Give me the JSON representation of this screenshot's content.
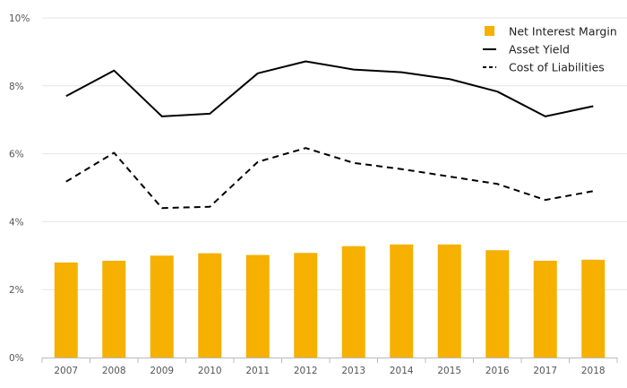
{
  "chart_data": {
    "type": "bar",
    "title": "",
    "xlabel": "",
    "ylabel": "",
    "categories": [
      "2007",
      "2008",
      "2009",
      "2010",
      "2011",
      "2012",
      "2013",
      "2014",
      "2015",
      "2016",
      "2017",
      "2018"
    ],
    "ylim": [
      0,
      10
    ],
    "y_ticks": [
      0,
      2,
      4,
      6,
      8,
      10
    ],
    "y_tick_labels": [
      "0%",
      "2%",
      "4%",
      "6%",
      "8%",
      "10%"
    ],
    "grid": "horizontal",
    "legend_position": "top-right",
    "series": [
      {
        "name": "Net Interest Margin",
        "kind": "bar",
        "color": "#F5B000",
        "values": [
          2.8,
          2.85,
          3.0,
          3.07,
          3.02,
          3.08,
          3.28,
          3.33,
          3.33,
          3.16,
          2.85,
          2.88
        ]
      },
      {
        "name": "Asset Yield",
        "kind": "line",
        "dash": "solid",
        "color": "#000000",
        "values": [
          7.7,
          8.45,
          7.1,
          7.18,
          8.37,
          8.72,
          8.48,
          8.4,
          8.2,
          7.83,
          7.1,
          7.4
        ]
      },
      {
        "name": "Cost of Liabilities",
        "kind": "line",
        "dash": "dashed",
        "color": "#000000",
        "values": [
          5.18,
          6.03,
          4.4,
          4.44,
          5.76,
          6.17,
          5.73,
          5.55,
          5.33,
          5.11,
          4.64,
          4.9
        ]
      }
    ]
  }
}
